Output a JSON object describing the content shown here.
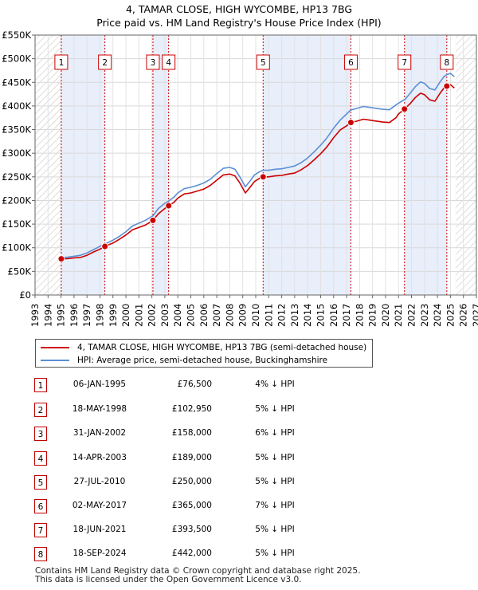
{
  "title_line1": "4, TAMAR CLOSE, HIGH WYCOMBE, HP13 7BG",
  "title_line2": "Price paid vs. HM Land Registry's House Price Index (HPI)",
  "chart_data": {
    "type": "line",
    "xlim": [
      1993,
      2027
    ],
    "ylim": [
      0,
      550000
    ],
    "x_ticks": [
      "1993",
      "1994",
      "1995",
      "1996",
      "1997",
      "1998",
      "1999",
      "2000",
      "2001",
      "2002",
      "2003",
      "2004",
      "2005",
      "2006",
      "2007",
      "2008",
      "2009",
      "2010",
      "2011",
      "2012",
      "2013",
      "2014",
      "2015",
      "2016",
      "2017",
      "2018",
      "2019",
      "2020",
      "2021",
      "2022",
      "2023",
      "2024",
      "2025",
      "2026",
      "2027"
    ],
    "y_ticks": [
      {
        "value": 0,
        "label": "£0"
      },
      {
        "value": 50000,
        "label": "£50K"
      },
      {
        "value": 100000,
        "label": "£100K"
      },
      {
        "value": 150000,
        "label": "£150K"
      },
      {
        "value": 200000,
        "label": "£200K"
      },
      {
        "value": 250000,
        "label": "£250K"
      },
      {
        "value": 300000,
        "label": "£300K"
      },
      {
        "value": 350000,
        "label": "£350K"
      },
      {
        "value": 400000,
        "label": "£400K"
      },
      {
        "value": 450000,
        "label": "£450K"
      },
      {
        "value": 500000,
        "label": "£500K"
      },
      {
        "value": 550000,
        "label": "£550K"
      }
    ],
    "data_start": 1995.0,
    "data_end": 2025.4,
    "series": [
      {
        "name": "4, TAMAR CLOSE, HIGH WYCOMBE, HP13 7BG (semi-detached house)",
        "color": "#cc0000",
        "points": [
          [
            1995.02,
            76500
          ],
          [
            1995.5,
            77000
          ],
          [
            1996.0,
            78500
          ],
          [
            1996.5,
            79500
          ],
          [
            1997.0,
            84000
          ],
          [
            1997.5,
            91000
          ],
          [
            1998.0,
            97000
          ],
          [
            1998.38,
            102950
          ],
          [
            1999.0,
            110000
          ],
          [
            1999.5,
            118000
          ],
          [
            2000.0,
            127000
          ],
          [
            2000.5,
            138000
          ],
          [
            2001.0,
            143000
          ],
          [
            2001.5,
            148000
          ],
          [
            2002.08,
            158000
          ],
          [
            2002.5,
            172000
          ],
          [
            2003.0,
            183000
          ],
          [
            2003.29,
            189000
          ],
          [
            2003.7,
            196000
          ],
          [
            2004.0,
            205000
          ],
          [
            2004.5,
            214000
          ],
          [
            2005.0,
            216000
          ],
          [
            2005.5,
            220000
          ],
          [
            2006.0,
            224000
          ],
          [
            2006.5,
            232000
          ],
          [
            2007.0,
            243000
          ],
          [
            2007.5,
            254000
          ],
          [
            2008.0,
            256000
          ],
          [
            2008.4,
            252000
          ],
          [
            2008.8,
            236000
          ],
          [
            2009.2,
            216000
          ],
          [
            2009.5,
            226000
          ],
          [
            2009.9,
            240000
          ],
          [
            2010.3,
            247000
          ],
          [
            2010.57,
            250000
          ],
          [
            2011.0,
            250000
          ],
          [
            2011.5,
            252000
          ],
          [
            2012.0,
            253000
          ],
          [
            2012.5,
            256000
          ],
          [
            2013.0,
            258000
          ],
          [
            2013.5,
            265000
          ],
          [
            2014.0,
            274000
          ],
          [
            2014.5,
            286000
          ],
          [
            2015.0,
            299000
          ],
          [
            2015.5,
            314000
          ],
          [
            2016.0,
            333000
          ],
          [
            2016.5,
            349000
          ],
          [
            2017.0,
            358000
          ],
          [
            2017.33,
            365000
          ],
          [
            2017.8,
            368000
          ],
          [
            2018.3,
            372000
          ],
          [
            2018.8,
            370000
          ],
          [
            2019.3,
            368000
          ],
          [
            2019.8,
            366000
          ],
          [
            2020.3,
            365000
          ],
          [
            2020.8,
            375000
          ],
          [
            2021.0,
            383000
          ],
          [
            2021.46,
            393500
          ],
          [
            2021.9,
            405000
          ],
          [
            2022.3,
            418000
          ],
          [
            2022.7,
            427000
          ],
          [
            2023.0,
            424000
          ],
          [
            2023.4,
            413000
          ],
          [
            2023.8,
            410000
          ],
          [
            2024.2,
            427000
          ],
          [
            2024.5,
            438000
          ],
          [
            2024.72,
            442000
          ],
          [
            2025.0,
            445000
          ],
          [
            2025.3,
            438000
          ]
        ]
      },
      {
        "name": "HPI: Average price, semi-detached house, Buckinghamshire",
        "color": "#5b8fd4",
        "points": [
          [
            1995.0,
            79000
          ],
          [
            1995.5,
            80000
          ],
          [
            1996.0,
            82000
          ],
          [
            1996.5,
            84000
          ],
          [
            1997.0,
            89000
          ],
          [
            1997.5,
            96000
          ],
          [
            1998.0,
            103000
          ],
          [
            1998.4,
            108000
          ],
          [
            1999.0,
            116000
          ],
          [
            1999.5,
            124000
          ],
          [
            2000.0,
            134000
          ],
          [
            2000.5,
            146000
          ],
          [
            2001.0,
            152000
          ],
          [
            2001.5,
            158000
          ],
          [
            2002.1,
            168000
          ],
          [
            2002.5,
            183000
          ],
          [
            2003.0,
            194000
          ],
          [
            2003.3,
            199000
          ],
          [
            2003.7,
            207000
          ],
          [
            2004.0,
            216000
          ],
          [
            2004.5,
            225000
          ],
          [
            2005.0,
            228000
          ],
          [
            2005.5,
            232000
          ],
          [
            2006.0,
            237000
          ],
          [
            2006.5,
            245000
          ],
          [
            2007.0,
            257000
          ],
          [
            2007.5,
            268000
          ],
          [
            2008.0,
            270000
          ],
          [
            2008.4,
            266000
          ],
          [
            2008.8,
            249000
          ],
          [
            2009.2,
            229000
          ],
          [
            2009.5,
            239000
          ],
          [
            2009.9,
            254000
          ],
          [
            2010.3,
            261000
          ],
          [
            2010.6,
            264000
          ],
          [
            2011.0,
            264000
          ],
          [
            2011.5,
            266000
          ],
          [
            2012.0,
            267000
          ],
          [
            2012.5,
            270000
          ],
          [
            2013.0,
            273000
          ],
          [
            2013.5,
            280000
          ],
          [
            2014.0,
            290000
          ],
          [
            2014.5,
            303000
          ],
          [
            2015.0,
            317000
          ],
          [
            2015.5,
            333000
          ],
          [
            2016.0,
            353000
          ],
          [
            2016.5,
            370000
          ],
          [
            2017.0,
            383000
          ],
          [
            2017.3,
            391000
          ],
          [
            2017.8,
            395000
          ],
          [
            2018.3,
            399000
          ],
          [
            2018.8,
            397000
          ],
          [
            2019.3,
            395000
          ],
          [
            2019.8,
            393000
          ],
          [
            2020.3,
            392000
          ],
          [
            2020.8,
            402000
          ],
          [
            2021.0,
            406000
          ],
          [
            2021.5,
            414000
          ],
          [
            2021.9,
            427000
          ],
          [
            2022.3,
            441000
          ],
          [
            2022.7,
            451000
          ],
          [
            2023.0,
            448000
          ],
          [
            2023.4,
            437000
          ],
          [
            2023.8,
            434000
          ],
          [
            2024.2,
            451000
          ],
          [
            2024.5,
            462000
          ],
          [
            2024.7,
            466000
          ],
          [
            2025.0,
            469000
          ],
          [
            2025.3,
            462000
          ]
        ]
      }
    ],
    "sales": [
      {
        "n": "1",
        "x": 1995.02,
        "price": 76500
      },
      {
        "n": "2",
        "x": 1998.38,
        "price": 102950
      },
      {
        "n": "3",
        "x": 2002.08,
        "price": 158000
      },
      {
        "n": "4",
        "x": 2003.29,
        "price": 189000
      },
      {
        "n": "5",
        "x": 2010.57,
        "price": 250000
      },
      {
        "n": "6",
        "x": 2017.33,
        "price": 365000
      },
      {
        "n": "7",
        "x": 2021.46,
        "price": 393500
      },
      {
        "n": "8",
        "x": 2024.72,
        "price": 442000
      }
    ],
    "shade_spans": [
      [
        1995.02,
        1998.38
      ],
      [
        2002.08,
        2003.29
      ],
      [
        2010.57,
        2017.33
      ],
      [
        2021.46,
        2024.72
      ]
    ]
  },
  "legend": {
    "red_label": "4, TAMAR CLOSE, HIGH WYCOMBE, HP13 7BG (semi-detached house)",
    "blue_label": "HPI: Average price, semi-detached house, Buckinghamshire"
  },
  "table": [
    {
      "n": "1",
      "date": "06-JAN-1995",
      "price": "£76,500",
      "hpi": "4% ↓ HPI"
    },
    {
      "n": "2",
      "date": "18-MAY-1998",
      "price": "£102,950",
      "hpi": "5% ↓ HPI"
    },
    {
      "n": "3",
      "date": "31-JAN-2002",
      "price": "£158,000",
      "hpi": "6% ↓ HPI"
    },
    {
      "n": "4",
      "date": "14-APR-2003",
      "price": "£189,000",
      "hpi": "5% ↓ HPI"
    },
    {
      "n": "5",
      "date": "27-JUL-2010",
      "price": "£250,000",
      "hpi": "5% ↓ HPI"
    },
    {
      "n": "6",
      "date": "02-MAY-2017",
      "price": "£365,000",
      "hpi": "7% ↓ HPI"
    },
    {
      "n": "7",
      "date": "18-JUN-2021",
      "price": "£393,500",
      "hpi": "5% ↓ HPI"
    },
    {
      "n": "8",
      "date": "18-SEP-2024",
      "price": "£442,000",
      "hpi": "5% ↓ HPI"
    }
  ],
  "footer_line1": "Contains HM Land Registry data © Crown copyright and database right 2025.",
  "footer_line2": "This data is licensed under the Open Government Licence v3.0."
}
